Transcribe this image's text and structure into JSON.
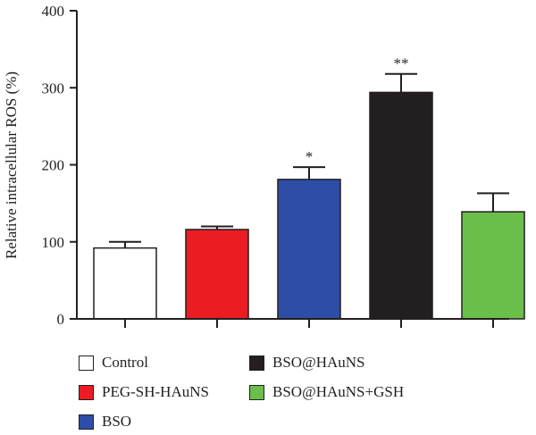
{
  "chart_data": {
    "type": "bar",
    "ylabel": "Relative intracellular ROS (%)",
    "xlabel": "",
    "ylim": [
      0,
      400
    ],
    "yticks": [
      0,
      100,
      200,
      300,
      400
    ],
    "categories": [
      "Control",
      "PEG-SH-HAuNS",
      "BSO",
      "BSO@HAuNS",
      "BSO@HAuNS+GSH"
    ],
    "values": [
      92,
      116,
      181,
      294,
      139
    ],
    "errors": [
      8,
      4,
      16,
      24,
      24
    ],
    "significance": [
      "",
      "",
      "*",
      "**",
      ""
    ],
    "colors": [
      "#ffffff",
      "#ec1c24",
      "#2e4da7",
      "#231f20",
      "#6abf4b"
    ],
    "grid": false
  },
  "legend": {
    "items": [
      {
        "label": "Control",
        "color": "#ffffff"
      },
      {
        "label": "PEG-SH-HAuNS",
        "color": "#ec1c24"
      },
      {
        "label": "BSO",
        "color": "#2e4da7"
      },
      {
        "label": "BSO@HAuNS",
        "color": "#231f20"
      },
      {
        "label": "BSO@HAuNS+GSH",
        "color": "#6abf4b"
      }
    ]
  }
}
